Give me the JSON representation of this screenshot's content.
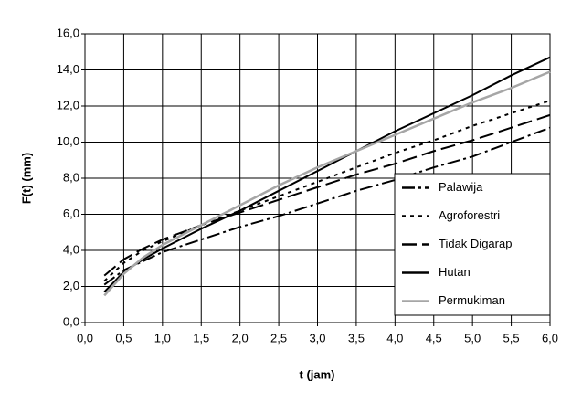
{
  "chart_data": {
    "type": "line",
    "xlabel": "t (jam)",
    "ylabel": "F(t) (mm)",
    "x": [
      0.25,
      0.5,
      0.75,
      1,
      1.5,
      2,
      2.5,
      3,
      3.5,
      4,
      4.5,
      5,
      5.5,
      6
    ],
    "series": [
      {
        "name": "Palawija",
        "color": "#000000",
        "dash": "14,4,3,4",
        "values": [
          2.1,
          2.9,
          3.4,
          3.9,
          4.6,
          5.3,
          5.9,
          6.6,
          7.3,
          7.9,
          8.6,
          9.2,
          10.0,
          10.8
        ]
      },
      {
        "name": "Agroforestri",
        "color": "#000000",
        "dash": "4,5",
        "values": [
          2.3,
          3.3,
          4.0,
          4.5,
          5.4,
          6.2,
          7.0,
          7.8,
          8.6,
          9.4,
          10.1,
          10.9,
          11.6,
          12.3
        ]
      },
      {
        "name": "Tidak Digarap",
        "color": "#000000",
        "dash": "16,6",
        "values": [
          2.6,
          3.5,
          4.1,
          4.6,
          5.4,
          6.1,
          6.8,
          7.5,
          8.2,
          8.8,
          9.5,
          10.1,
          10.8,
          11.5
        ]
      },
      {
        "name": "Hutan",
        "color": "#000000",
        "dash": "none",
        "values": [
          1.7,
          2.8,
          3.5,
          4.1,
          5.2,
          6.2,
          7.3,
          8.4,
          9.5,
          10.6,
          11.6,
          12.6,
          13.7,
          14.7
        ]
      },
      {
        "name": "Permukiman",
        "color": "#a6a6a6",
        "dash": "none",
        "values": [
          1.5,
          2.7,
          3.6,
          4.3,
          5.4,
          6.5,
          7.6,
          8.6,
          9.5,
          10.4,
          11.3,
          12.2,
          13.0,
          13.9
        ]
      }
    ],
    "xlim": [
      0,
      6
    ],
    "xticks": [
      {
        "value": 0,
        "label": "0,0"
      },
      {
        "value": 0.5,
        "label": "0,5"
      },
      {
        "value": 1,
        "label": "1,0"
      },
      {
        "value": 1.5,
        "label": "1,5"
      },
      {
        "value": 2,
        "label": "2,0"
      },
      {
        "value": 2.5,
        "label": "2,5"
      },
      {
        "value": 3,
        "label": "3,0"
      },
      {
        "value": 3.5,
        "label": "3,5"
      },
      {
        "value": 4,
        "label": "4,0"
      },
      {
        "value": 4.5,
        "label": "4,5"
      },
      {
        "value": 5,
        "label": "5,0"
      },
      {
        "value": 5.5,
        "label": "5,5"
      },
      {
        "value": 6,
        "label": "6,0"
      }
    ],
    "ylim": [
      0,
      16
    ],
    "yticks": [
      {
        "value": 0,
        "label": "0,0"
      },
      {
        "value": 2,
        "label": "2,0"
      },
      {
        "value": 4,
        "label": "4,0"
      },
      {
        "value": 6,
        "label": "6,0"
      },
      {
        "value": 8,
        "label": "8,0"
      },
      {
        "value": 10,
        "label": "10,0"
      },
      {
        "value": 12,
        "label": "12,0"
      },
      {
        "value": 14,
        "label": "14,0"
      },
      {
        "value": 16,
        "label": "16,0"
      }
    ],
    "grid": true,
    "legend": "lower right"
  }
}
